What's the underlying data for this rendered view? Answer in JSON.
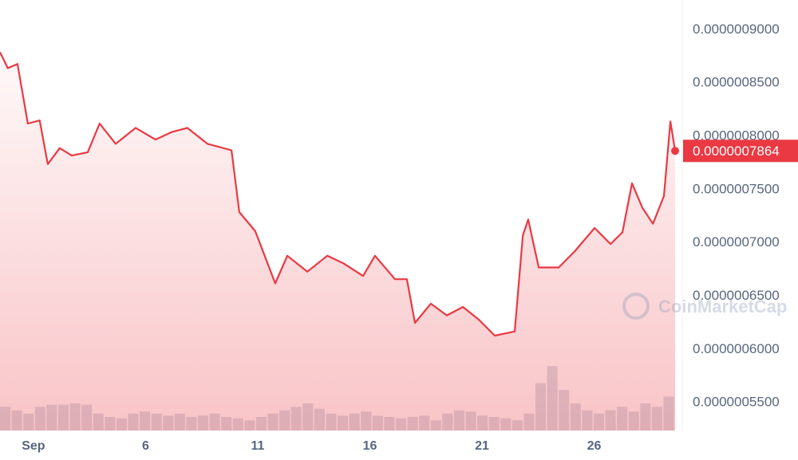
{
  "chart_data": {
    "type": "line",
    "x": [
      -0.49,
      -0.14,
      0.29,
      0.75,
      1.28,
      1.64,
      2.17,
      2.71,
      3.42,
      3.95,
      4.67,
      5.56,
      6.44,
      7.16,
      7.86,
      8.76,
      9.83,
      10.18,
      10.89,
      11.78,
      12.32,
      13.21,
      14.1,
      14.81,
      15.7,
      16.23,
      17.12,
      17.65,
      18.01,
      18.72,
      19.43,
      20.15,
      20.86,
      21.57,
      22.46,
      22.82,
      23.06,
      23.53,
      24.42,
      25.13,
      26.02,
      26.73,
      27.26,
      27.69,
      28.15,
      28.62,
      29.11,
      29.4,
      29.61
    ],
    "series": [
      {
        "color": "#ea3943",
        "fill": true,
        "values": [
          8.79e-07,
          8.64e-07,
          8.68e-07,
          8.12e-07,
          8.15e-07,
          7.74e-07,
          7.89e-07,
          7.82e-07,
          7.85e-07,
          8.12e-07,
          7.93e-07,
          8.08e-07,
          7.97e-07,
          8.04e-07,
          8.08e-07,
          7.93e-07,
          7.87e-07,
          7.29e-07,
          7.11e-07,
          6.62e-07,
          6.88e-07,
          6.73e-07,
          6.88e-07,
          6.81e-07,
          6.69e-07,
          6.88e-07,
          6.66e-07,
          6.66e-07,
          6.25e-07,
          6.43e-07,
          6.32e-07,
          6.4e-07,
          6.28e-07,
          6.13e-07,
          6.17e-07,
          7.07e-07,
          7.22e-07,
          6.77e-07,
          6.77e-07,
          6.92e-07,
          7.14e-07,
          6.99e-07,
          7.1e-07,
          7.56e-07,
          7.33e-07,
          7.18e-07,
          7.44e-07,
          8.14e-07,
          7.864e-07
        ]
      }
    ],
    "volume": {
      "type": "bar",
      "color": "#c9d0dc",
      "ylim": [
        0,
        100
      ],
      "values": [
        35,
        30,
        25,
        35,
        38,
        38,
        40,
        38,
        25,
        20,
        18,
        25,
        28,
        25,
        22,
        25,
        20,
        22,
        25,
        20,
        18,
        15,
        20,
        25,
        30,
        35,
        40,
        32,
        25,
        22,
        25,
        28,
        22,
        20,
        18,
        20,
        22,
        15,
        25,
        30,
        28,
        22,
        20,
        18,
        15,
        25,
        70,
        95,
        60,
        40,
        30,
        25,
        30,
        35,
        28,
        40,
        35,
        50
      ]
    },
    "xlim": [
      -0.49,
      29.93
    ],
    "xticks": [
      {
        "value": 1,
        "label": "Sep"
      },
      6,
      11,
      16,
      21,
      26
    ],
    "ylim": [
      5.24e-07,
      9.28e-07
    ],
    "yticks": [
      {
        "value": 5.5e-07,
        "label": "0.0000005500"
      },
      {
        "value": 6e-07,
        "label": "0.0000006000"
      },
      {
        "value": 6.5e-07,
        "label": "0.0000006500"
      },
      {
        "value": 7e-07,
        "label": "0.0000007000"
      },
      {
        "value": 7.5e-07,
        "label": "0.0000007500"
      },
      {
        "value": 8e-07,
        "label": "0.0000008000"
      },
      {
        "value": 8.5e-07,
        "label": "0.0000008500"
      },
      {
        "value": 9e-07,
        "label": "0.0000009000"
      }
    ],
    "current_price": {
      "value": 7.864e-07,
      "label": "0.0000007864"
    },
    "watermark": "CoinMarketCap"
  }
}
